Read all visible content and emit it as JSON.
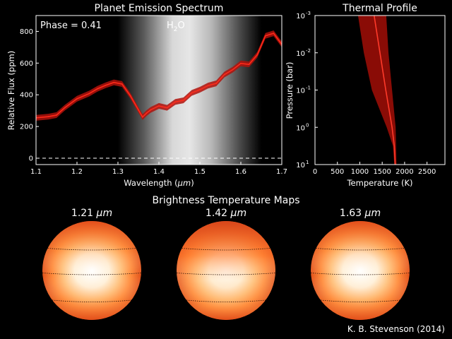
{
  "chart_data": [
    {
      "type": "line",
      "title": "Planet Emission Spectrum",
      "xlabel": "Wavelength",
      "xlabel_unit": "μm",
      "ylabel": "Relative Flux (ppm)",
      "xlim": [
        1.1,
        1.7
      ],
      "ylim": [
        -40,
        900
      ],
      "xticks": [
        "1.1",
        "1.2",
        "1.3",
        "1.4",
        "1.5",
        "1.6",
        "1.7"
      ],
      "yticks": [
        "0",
        "200",
        "400",
        "600",
        "800"
      ],
      "phase_label": "Phase = 0.41",
      "band_label": "H",
      "band_label_sub": "2",
      "band_label_end": "O",
      "band_range": [
        1.3,
        1.65
      ],
      "series": [
        {
          "x": [
            1.1,
            1.13,
            1.15,
            1.17,
            1.2,
            1.23,
            1.25,
            1.27,
            1.29,
            1.31,
            1.33,
            1.35,
            1.36,
            1.37,
            1.38,
            1.4,
            1.42,
            1.44,
            1.46,
            1.48,
            1.5,
            1.52,
            1.54,
            1.56,
            1.58,
            1.6,
            1.62,
            1.64,
            1.66,
            1.68,
            1.7
          ],
          "values": [
            255,
            262,
            272,
            318,
            375,
            408,
            438,
            460,
            478,
            468,
            395,
            305,
            260,
            285,
            305,
            330,
            318,
            355,
            365,
            412,
            432,
            458,
            472,
            528,
            558,
            598,
            592,
            652,
            772,
            788,
            718
          ],
          "error": 18
        }
      ],
      "zero_line": 0,
      "colors": {
        "line": "#ff2a1a",
        "band": "#b0120c"
      }
    },
    {
      "type": "line",
      "title": "Thermal Profile",
      "xlabel": "Temperature (K)",
      "ylabel": "Pressure (bar)",
      "xlim": [
        0,
        2900
      ],
      "ylim_log": [
        -3,
        1
      ],
      "y_log": true,
      "y_inverted": true,
      "xticks": [
        "0",
        "500",
        "1000",
        "1500",
        "2000",
        "2500"
      ],
      "ytick_base": "10",
      "ytick_exponents": [
        "-3",
        "-2",
        "-1",
        "0",
        "1"
      ],
      "profile": {
        "log_p": [
          -3.0,
          -2.0,
          -1.0,
          0.0,
          0.5,
          1.0
        ],
        "median_T": [
          1320,
          1450,
          1580,
          1720,
          1770,
          1790
        ],
        "low_T": [
          960,
          1090,
          1270,
          1600,
          1740,
          1770
        ],
        "high_T": [
          1590,
          1640,
          1720,
          1800,
          1810,
          1820
        ]
      },
      "colors": {
        "median": "#ff3a2a",
        "band": "#8a0c06"
      }
    },
    {
      "type": "heatmap",
      "title": "Brightness Temperature Maps",
      "maps": [
        {
          "label": "1.21",
          "unit": "μm"
        },
        {
          "label": "1.42",
          "unit": "μm"
        },
        {
          "label": "1.63",
          "unit": "μm"
        }
      ]
    }
  ],
  "credit": "K. B. Stevenson (2014)"
}
